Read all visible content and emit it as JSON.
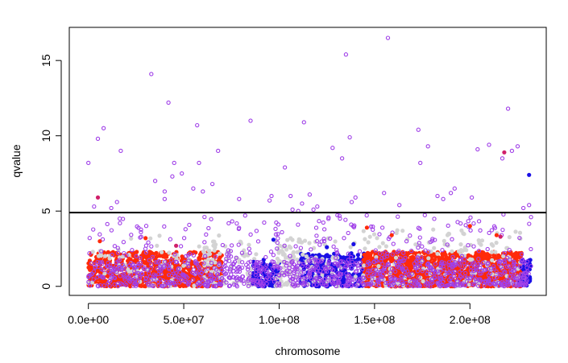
{
  "chart_data": {
    "type": "scatter",
    "title": "",
    "xlabel": "chromosome",
    "ylabel": "qvalue",
    "xlim": [
      -10000000,
      240000000
    ],
    "ylim": [
      -0.6,
      17.2
    ],
    "x_ticks": [
      {
        "value": 0,
        "label": "0.0e+00"
      },
      {
        "value": 50000000,
        "label": "5.0e+07"
      },
      {
        "value": 100000000,
        "label": "1.0e+08"
      },
      {
        "value": 150000000,
        "label": "1.5e+08"
      },
      {
        "value": 200000000,
        "label": "2.0e+08"
      }
    ],
    "y_ticks": [
      {
        "value": 0,
        "label": "0"
      },
      {
        "value": 5,
        "label": "5"
      },
      {
        "value": 10,
        "label": "10"
      },
      {
        "value": 15,
        "label": "15"
      }
    ],
    "threshold": 4.9,
    "grid": false,
    "legend": "none",
    "colors": {
      "red": "#ff2a0a",
      "gray": "#d3d3d3",
      "blue": "#1a0fe6",
      "purple_outline": "#a040e8",
      "magenta": "#d0206a",
      "threshold_line": "#000000"
    },
    "dense_bands": [
      {
        "name": "red",
        "style": "filled",
        "x_range": [
          0,
          70000000
        ],
        "y_range": [
          0,
          2.3
        ],
        "count": 750
      },
      {
        "name": "gray",
        "style": "filled",
        "x_range": [
          0,
          70000000
        ],
        "y_range": [
          0,
          3.6
        ],
        "count": 70
      },
      {
        "name": "gray",
        "style": "filled",
        "x_range": [
          60000000,
          88000000
        ],
        "y_range": [
          0,
          3.0
        ],
        "count": 80
      },
      {
        "name": "blue",
        "style": "filled",
        "x_range": [
          86000000,
          100000000
        ],
        "y_range": [
          0,
          1.8
        ],
        "count": 90
      },
      {
        "name": "gray",
        "style": "filled",
        "x_range": [
          98000000,
          112000000
        ],
        "y_range": [
          0,
          3.2
        ],
        "count": 90
      },
      {
        "name": "blue",
        "style": "filled",
        "x_range": [
          111000000,
          145000000
        ],
        "y_range": [
          0,
          2.2
        ],
        "count": 320
      },
      {
        "name": "gray",
        "style": "filled",
        "x_range": [
          111000000,
          145000000
        ],
        "y_range": [
          0,
          3.2
        ],
        "count": 50
      },
      {
        "name": "red",
        "style": "filled",
        "x_range": [
          144000000,
          227000000
        ],
        "y_range": [
          0,
          2.3
        ],
        "count": 1200
      },
      {
        "name": "gray",
        "style": "filled",
        "x_range": [
          144000000,
          227000000
        ],
        "y_range": [
          0,
          3.8
        ],
        "count": 150
      },
      {
        "name": "blue",
        "style": "filled",
        "x_range": [
          226000000,
          232000000
        ],
        "y_range": [
          0,
          1.8
        ],
        "count": 60
      },
      {
        "name": "purple_outline",
        "style": "open",
        "x_range": [
          0,
          232000000
        ],
        "y_range": [
          0,
          1.6
        ],
        "count": 900
      },
      {
        "name": "purple_outline",
        "style": "open",
        "x_range": [
          0,
          232000000
        ],
        "y_range": [
          1.6,
          4.8
        ],
        "count": 280
      }
    ],
    "series": [
      {
        "name": "purple_outline",
        "style": "open",
        "x": [
          0,
          3000000,
          5000000,
          8000000,
          12000000,
          17000000,
          33000000,
          35000000,
          40000000,
          42000000,
          44000000,
          45000000,
          49000000,
          57000000,
          58000000,
          68000000,
          79000000,
          85000000,
          96000000,
          103000000,
          112000000,
          113000000,
          118000000,
          128000000,
          133000000,
          135000000,
          137000000,
          140000000,
          155000000,
          157000000,
          163000000,
          173000000,
          174000000,
          178000000,
          183000000,
          192000000,
          201000000,
          204000000,
          210000000,
          217000000,
          220000000,
          222000000,
          225000000,
          228000000,
          231000000,
          232000000,
          40000000,
          60000000,
          55000000,
          65000000,
          95000000,
          106000000,
          116000000,
          138000000,
          186000000,
          110000000,
          107000000,
          15000000,
          120000000,
          190000000
        ],
        "y": [
          8.2,
          5.3,
          9.8,
          10.5,
          5.2,
          9.0,
          14.1,
          7.0,
          6.3,
          12.2,
          7.3,
          8.2,
          7.5,
          10.7,
          8.2,
          9.0,
          5.8,
          11.0,
          6.0,
          7.9,
          5.5,
          10.9,
          5.1,
          9.2,
          8.5,
          15.4,
          9.9,
          5.9,
          6.2,
          16.5,
          5.4,
          10.4,
          8.2,
          9.3,
          6.0,
          6.5,
          5.9,
          9.1,
          9.4,
          8.5,
          11.8,
          9.0,
          9.3,
          5.2,
          5.4,
          4.6,
          5.8,
          6.3,
          6.5,
          6.8,
          5.7,
          6.0,
          6.1,
          5.6,
          5.8,
          5.0,
          5.1,
          5.6,
          5.3,
          6.2
        ]
      },
      {
        "name": "magenta",
        "style": "filled",
        "x": [
          5000000,
          218000000,
          216000000,
          46000000
        ],
        "y": [
          5.9,
          8.9,
          3.3,
          2.7
        ]
      },
      {
        "name": "blue",
        "style": "filled",
        "x": [
          231000000,
          97000000,
          139000000,
          125000000
        ],
        "y": [
          7.4,
          3.1,
          2.8,
          2.6
        ]
      },
      {
        "name": "red",
        "style": "filled",
        "x": [
          146000000,
          159000000,
          200000000,
          214000000,
          6000000,
          30000000
        ],
        "y": [
          3.9,
          3.4,
          4.0,
          3.4,
          3.0,
          3.2
        ]
      }
    ]
  }
}
